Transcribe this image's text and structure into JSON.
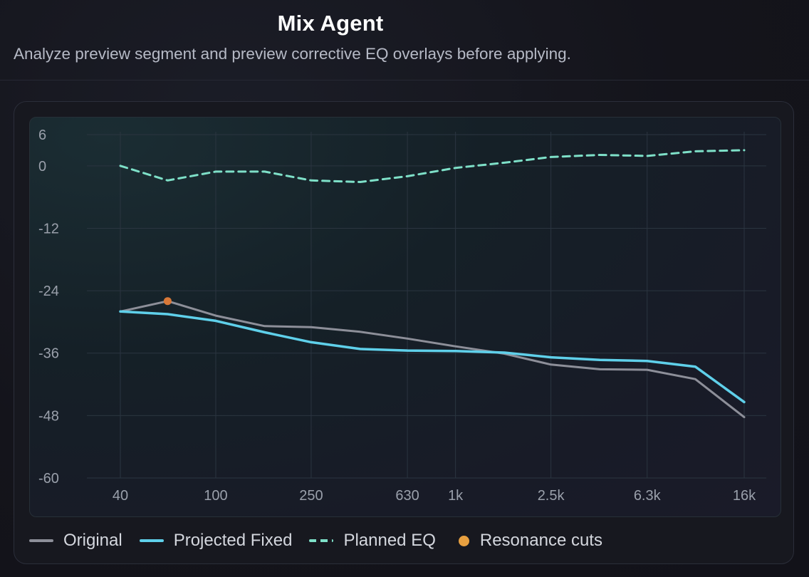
{
  "header": {
    "title": "Mix Agent",
    "subtitle": "Analyze preview segment and preview corrective EQ overlays before applying."
  },
  "colors": {
    "original": "#8d8f99",
    "projected": "#5fd0ea",
    "planned": "#7ee0c8",
    "resonance": "#e8a040",
    "resonance_marker": "#d87838",
    "grid": "#2b3540"
  },
  "chart_data": {
    "type": "line",
    "x_scale": "log",
    "x": [
      40,
      63,
      100,
      160,
      250,
      400,
      630,
      1000,
      1600,
      2500,
      4000,
      6300,
      10000,
      16000
    ],
    "xlim": [
      40,
      16000
    ],
    "ylim": [
      -60,
      6
    ],
    "x_ticks": [
      40,
      100,
      250,
      630,
      1000,
      2500,
      6300,
      16000
    ],
    "x_tick_labels": [
      "40",
      "100",
      "250",
      "630",
      "1k",
      "2.5k",
      "6.3k",
      "16k"
    ],
    "y_ticks": [
      6,
      0,
      -12,
      -24,
      -36,
      -48,
      -60
    ],
    "y_tick_labels": [
      "6",
      "0",
      "-12",
      "-24",
      "-36",
      "-48",
      "-60"
    ],
    "grid": true,
    "legend_position": "bottom-left",
    "series": [
      {
        "name": "Original",
        "style": "solid",
        "values": [
          -28,
          -26,
          -28.8,
          -30.8,
          -31,
          -31.9,
          -33.2,
          -34.7,
          -36.1,
          -38.2,
          -39.1,
          -39.2,
          -41,
          -48.3
        ]
      },
      {
        "name": "Projected Fixed",
        "style": "solid",
        "values": [
          -28,
          -28.5,
          -29.8,
          -32,
          -33.9,
          -35.2,
          -35.5,
          -35.6,
          -35.9,
          -36.8,
          -37.3,
          -37.5,
          -38.6,
          -45.4
        ]
      },
      {
        "name": "Planned EQ",
        "style": "dashed",
        "values": [
          0,
          -2.8,
          -1.1,
          -1.1,
          -2.8,
          -3.1,
          -2,
          -0.4,
          0.6,
          1.7,
          2.1,
          1.9,
          2.8,
          3
        ]
      }
    ],
    "markers": [
      {
        "name": "Resonance cuts",
        "x": 63,
        "y": -26
      }
    ]
  },
  "legend": [
    {
      "label": "Original",
      "kind": "line"
    },
    {
      "label": "Projected Fixed",
      "kind": "line"
    },
    {
      "label": "Planned EQ",
      "kind": "dashed"
    },
    {
      "label": "Resonance cuts",
      "kind": "dot"
    }
  ]
}
